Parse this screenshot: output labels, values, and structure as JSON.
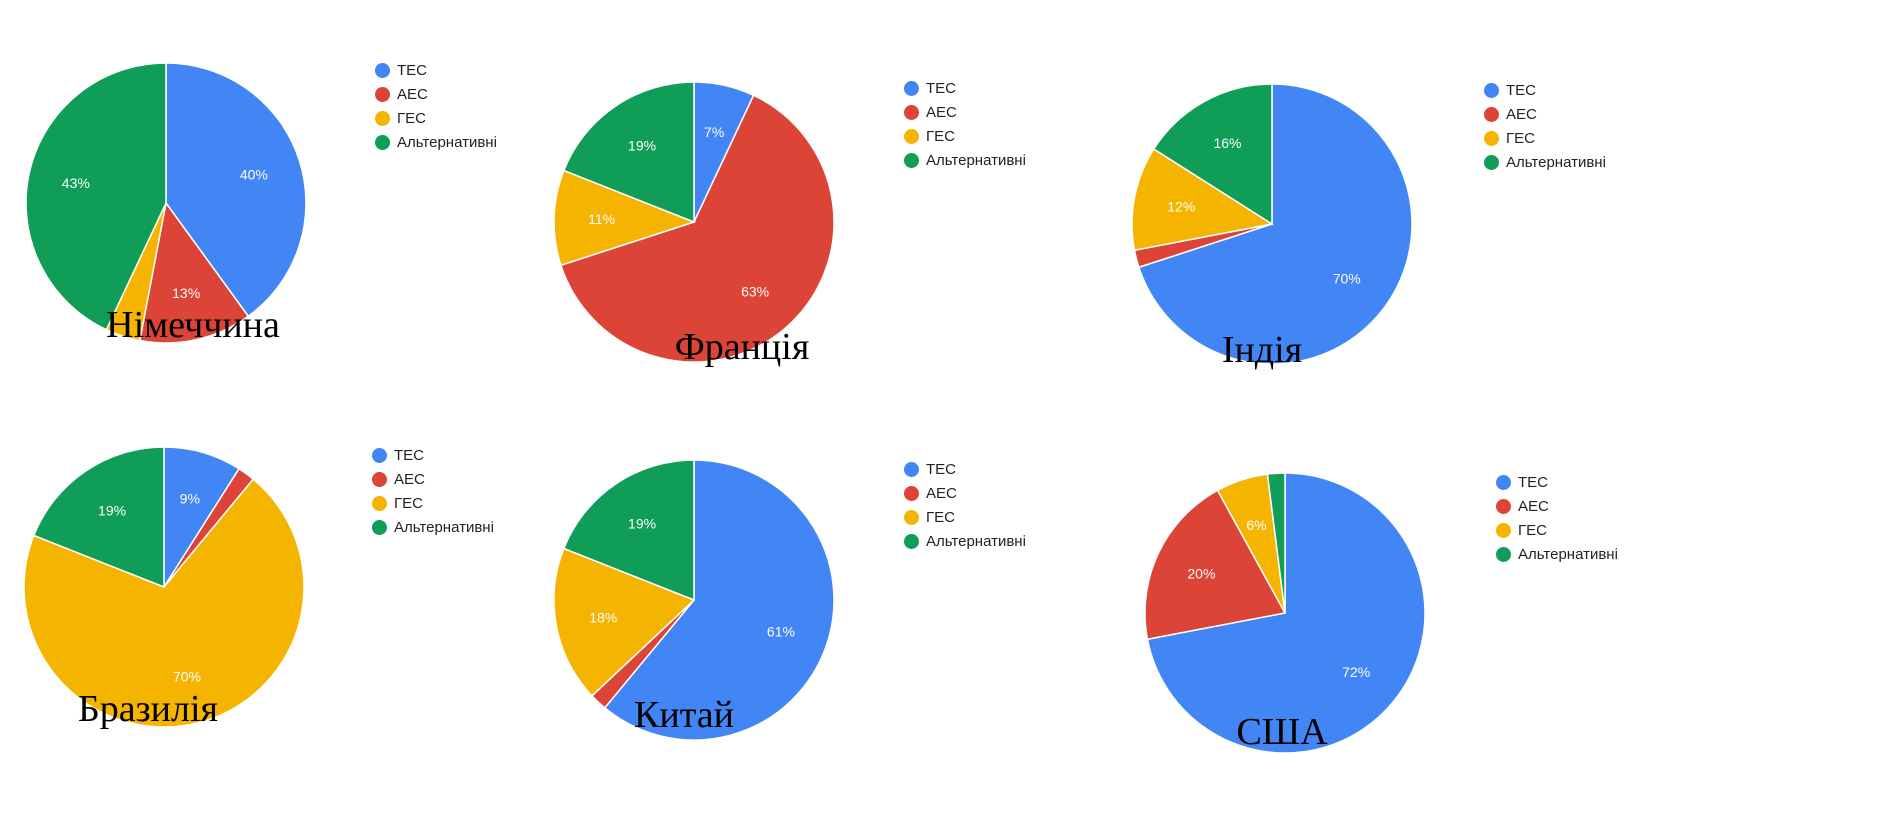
{
  "legend_labels": [
    "ТЕС",
    "АЕС",
    "ГЕС",
    "Альтернативні"
  ],
  "colors": [
    "#4285f4",
    "#db4437",
    "#f4b400",
    "#0f9d58"
  ],
  "chart_data": [
    {
      "type": "pie",
      "title": "Німеччина",
      "categories": [
        "ТЕС",
        "АЕС",
        "ГЕС",
        "Альтернативні"
      ],
      "values": [
        40,
        13,
        4,
        43
      ],
      "data_labels": [
        "40%",
        "13%",
        "",
        "43%"
      ],
      "legend_position": "right"
    },
    {
      "type": "pie",
      "title": "Франція",
      "categories": [
        "ТЕС",
        "АЕС",
        "ГЕС",
        "Альтернативні"
      ],
      "values": [
        7,
        63,
        11,
        19
      ],
      "data_labels": [
        "7%",
        "63%",
        "11%",
        "19%"
      ],
      "legend_position": "right"
    },
    {
      "type": "pie",
      "title": "Індія",
      "categories": [
        "ТЕС",
        "АЕС",
        "ГЕС",
        "Альтернативні"
      ],
      "values": [
        70,
        2,
        12,
        16
      ],
      "data_labels": [
        "70%",
        "",
        "12%",
        "16%"
      ],
      "legend_position": "right"
    },
    {
      "type": "pie",
      "title": "Бразилія",
      "categories": [
        "ТЕС",
        "АЕС",
        "ГЕС",
        "Альтернативні"
      ],
      "values": [
        9,
        2,
        70,
        19
      ],
      "data_labels": [
        "9%",
        "",
        "70%",
        "19%"
      ],
      "legend_position": "right"
    },
    {
      "type": "pie",
      "title": "Китай",
      "categories": [
        "ТЕС",
        "АЕС",
        "ГЕС",
        "Альтернативні"
      ],
      "values": [
        61,
        2,
        18,
        19
      ],
      "data_labels": [
        "61%",
        "",
        "18%",
        "19%"
      ],
      "legend_position": "right"
    },
    {
      "type": "pie",
      "title": "США",
      "categories": [
        "ТЕС",
        "АЕС",
        "ГЕС",
        "Альтернативні"
      ],
      "values": [
        72,
        20,
        6,
        2
      ],
      "data_labels": [
        "72%",
        "20%",
        "6%",
        ""
      ],
      "legend_position": "right"
    }
  ]
}
